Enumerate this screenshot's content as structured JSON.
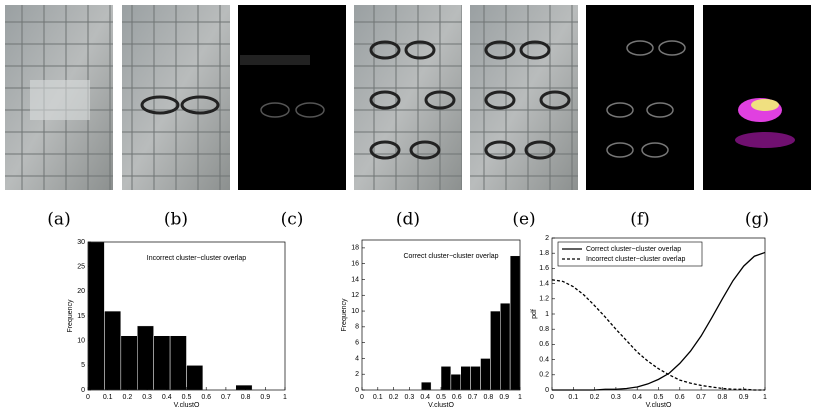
{
  "panels": [
    "(a)",
    "(b)",
    "(c)",
    "(d)",
    "(e)",
    "(f)",
    "(g)"
  ],
  "chart_data": [
    {
      "type": "histogram",
      "title": "Incorrect cluster−cluster overlap",
      "x_label": "V.clustO",
      "y_label": "Frequency",
      "bins": [
        0,
        0.0833,
        0.1667,
        0.25,
        0.3333,
        0.4167,
        0.5,
        0.5833,
        0.6667,
        0.75,
        0.8333,
        0.9167,
        1
      ],
      "values": [
        30,
        16,
        11,
        13,
        11,
        11,
        5,
        0,
        0,
        1,
        0,
        0
      ],
      "color": "#000000",
      "xlim": [
        0,
        1
      ],
      "xticks": [
        0,
        0.1,
        0.2,
        0.3,
        0.4,
        0.5,
        0.6,
        0.7,
        0.8,
        0.9,
        1
      ],
      "ylim": [
        0,
        30
      ],
      "yticks": [
        0,
        5,
        10,
        15,
        20,
        25,
        30
      ]
    },
    {
      "type": "histogram",
      "title": "Correct cluster−cluster overlap",
      "x_label": "V.clustO",
      "y_label": "Frequency",
      "bins": [
        0,
        0.0625,
        0.125,
        0.1875,
        0.25,
        0.3125,
        0.375,
        0.4375,
        0.5,
        0.5625,
        0.625,
        0.6875,
        0.75,
        0.8125,
        0.875,
        0.9375,
        1
      ],
      "values": [
        0,
        0,
        0,
        0,
        0,
        0,
        1,
        0,
        3,
        2,
        3,
        3,
        4,
        10,
        11,
        17
      ],
      "color": "#000000",
      "xlim": [
        0,
        1
      ],
      "xticks": [
        0,
        0.1,
        0.2,
        0.3,
        0.4,
        0.5,
        0.6,
        0.7,
        0.8,
        0.9,
        1
      ],
      "ylim": [
        0,
        19
      ],
      "yticks": [
        0,
        2,
        4,
        6,
        8,
        10,
        12,
        14,
        16,
        18
      ]
    },
    {
      "type": "line",
      "x_label": "V.clustO",
      "y_label": "pdf",
      "x": [
        0,
        0.05,
        0.1,
        0.15,
        0.2,
        0.25,
        0.3,
        0.35,
        0.4,
        0.45,
        0.5,
        0.55,
        0.6,
        0.65,
        0.7,
        0.75,
        0.8,
        0.85,
        0.9,
        0.95,
        1
      ],
      "series": [
        {
          "name": "Correct cluster−cluster overlap",
          "color": "#000000",
          "dashed": false,
          "values": [
            0,
            0,
            0,
            0,
            0,
            0.01,
            0.01,
            0.02,
            0.04,
            0.08,
            0.14,
            0.22,
            0.35,
            0.51,
            0.71,
            0.95,
            1.2,
            1.44,
            1.63,
            1.76,
            1.81
          ]
        },
        {
          "name": "Incorrect cluster−cluster overlap",
          "color": "#000000",
          "dashed": true,
          "values": [
            1.45,
            1.43,
            1.36,
            1.25,
            1.11,
            0.96,
            0.8,
            0.65,
            0.5,
            0.38,
            0.28,
            0.2,
            0.13,
            0.09,
            0.06,
            0.04,
            0.02,
            0.01,
            0.01,
            0,
            0
          ]
        }
      ],
      "legend": "upper left",
      "xlim": [
        0,
        1
      ],
      "xticks": [
        0,
        0.1,
        0.2,
        0.3,
        0.4,
        0.5,
        0.6,
        0.7,
        0.8,
        0.9,
        1
      ],
      "ylim": [
        0,
        2
      ],
      "yticks": [
        0,
        0.2,
        0.4,
        0.6,
        0.8,
        1,
        1.2,
        1.4,
        1.6,
        1.8,
        2
      ]
    }
  ]
}
